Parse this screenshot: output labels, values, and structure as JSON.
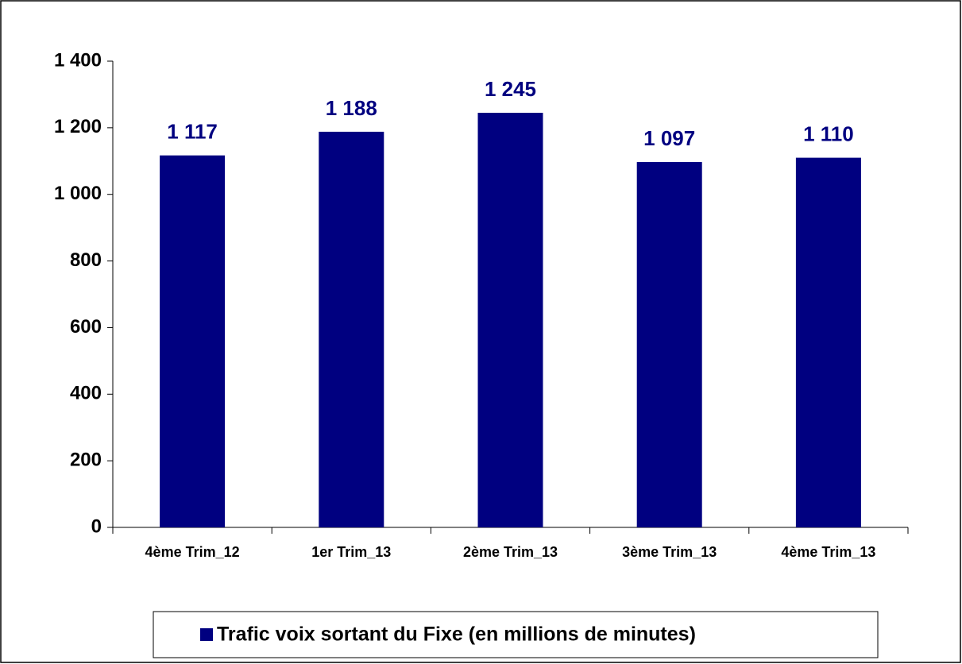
{
  "chart_data": {
    "type": "bar",
    "categories": [
      "4ème Trim_12",
      "1er Trim_13",
      "2ème Trim_13",
      "3ème Trim_13",
      "4ème Trim_13"
    ],
    "series": [
      {
        "name": "Trafic voix sortant du Fixe (en millions de minutes)",
        "color": "#000080",
        "values": [
          1117,
          1188,
          1245,
          1097,
          1110
        ],
        "value_labels": [
          "1 117",
          "1 188",
          "1 245",
          "1 097",
          "1 110"
        ]
      }
    ],
    "ylim": [
      0,
      1400
    ],
    "yticks": [
      0,
      200,
      400,
      600,
      800,
      {
        "value": 1000,
        "label": "1 000"
      },
      {
        "value": 1200,
        "label": "1 200"
      },
      {
        "value": 1400,
        "label": "1 400"
      }
    ],
    "grid": false,
    "legend": "bottom"
  }
}
